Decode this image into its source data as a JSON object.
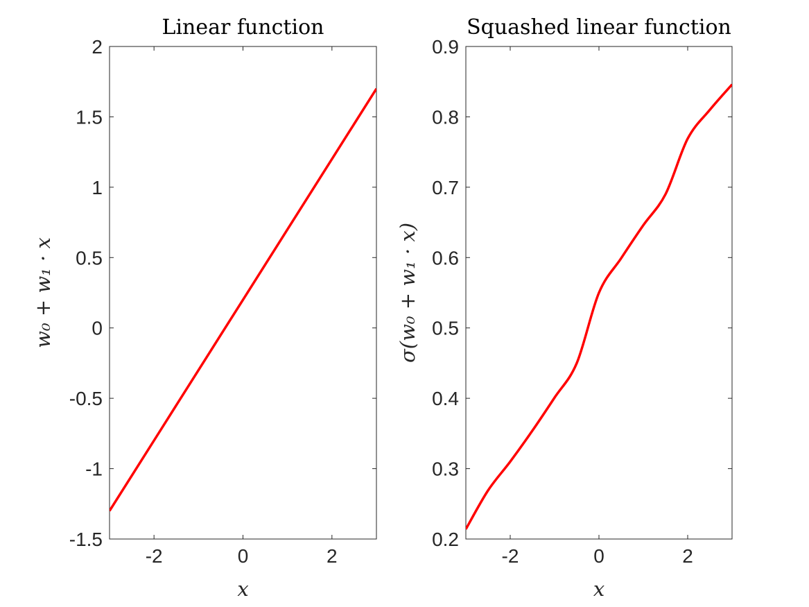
{
  "chart_data": [
    {
      "type": "line",
      "title": "Linear function",
      "xlabel": "x",
      "ylabel": "w₀ + w₁ · x",
      "xlim": [
        -3,
        3
      ],
      "ylim": [
        -1.5,
        2
      ],
      "xticks": [
        -2,
        0,
        2
      ],
      "xtick_labels": [
        "-2",
        "0",
        "2"
      ],
      "yticks": [
        -1.5,
        -1,
        -0.5,
        0,
        0.5,
        1,
        1.5,
        2
      ],
      "ytick_labels": [
        "-1.5",
        "-1",
        "-0.5",
        "0",
        "0.5",
        "1",
        "1.5",
        "2"
      ],
      "grid": false,
      "series": [
        {
          "color": "#ff0000",
          "x": [
            -3,
            -2,
            -1,
            0,
            1,
            2,
            3
          ],
          "values": [
            -1.3,
            -0.8,
            -0.3,
            0.2,
            0.7,
            1.2,
            1.7
          ]
        }
      ]
    },
    {
      "type": "line",
      "title": "Squashed linear function",
      "xlabel": "x",
      "ylabel": "σ(w₀ + w₁ · x)",
      "xlim": [
        -3,
        3
      ],
      "ylim": [
        0.2,
        0.9
      ],
      "xticks": [
        -2,
        0,
        2
      ],
      "xtick_labels": [
        "-2",
        "0",
        "2"
      ],
      "yticks": [
        0.2,
        0.3,
        0.4,
        0.5,
        0.6,
        0.7,
        0.8,
        0.9
      ],
      "ytick_labels": [
        "0.2",
        "0.3",
        "0.4",
        "0.5",
        "0.6",
        "0.7",
        "0.8",
        "0.9"
      ],
      "grid": false,
      "series": [
        {
          "color": "#ff0000",
          "x": [
            -3,
            -2.5,
            -2,
            -1.5,
            -1,
            -0.5,
            0,
            0.5,
            1,
            1.5,
            2,
            2.5,
            3
          ],
          "values": [
            0.214,
            0.269,
            0.31,
            0.354,
            0.401,
            0.45,
            0.55,
            0.599,
            0.646,
            0.69,
            0.769,
            0.81,
            0.846
          ]
        }
      ]
    }
  ]
}
